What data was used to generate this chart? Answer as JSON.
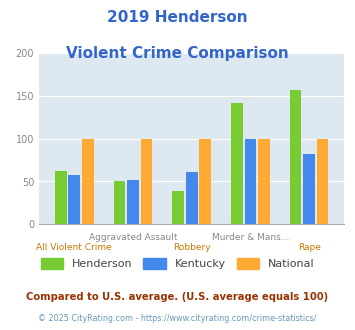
{
  "title_line1": "2019 Henderson",
  "title_line2": "Violent Crime Comparison",
  "title_color": "#3366cc",
  "categories": [
    "All Violent Crime",
    "Aggravated Assault",
    "Robbery",
    "Murder & Mans...",
    "Rape"
  ],
  "cat_labels_top": [
    "",
    "Aggravated Assault",
    "",
    "Murder & Mans...",
    ""
  ],
  "cat_labels_bot": [
    "All Violent Crime",
    "",
    "Robbery",
    "",
    "Rape"
  ],
  "henderson": [
    62,
    51,
    39,
    141,
    157
  ],
  "kentucky": [
    57,
    52,
    61,
    100,
    82
  ],
  "national": [
    100,
    100,
    100,
    100,
    100
  ],
  "henderson_color": "#77cc33",
  "kentucky_color": "#4488ee",
  "national_color": "#ffaa33",
  "ylim": [
    0,
    200
  ],
  "yticks": [
    0,
    50,
    100,
    150,
    200
  ],
  "background_color": "#dde8f0",
  "grid_color": "#ffffff",
  "legend_labels": [
    "Henderson",
    "Kentucky",
    "National"
  ],
  "footnote1": "Compared to U.S. average. (U.S. average equals 100)",
  "footnote2": "© 2025 CityRating.com - https://www.cityrating.com/crime-statistics/",
  "footnote1_color": "#993300",
  "footnote2_color": "#6699bb",
  "top_label_color": "#888888",
  "bot_label_color": "#cc7700",
  "legend_text_color": "#444444",
  "yticklabel_color": "#888888",
  "bar_width": 0.2,
  "bar_gap": 0.03
}
